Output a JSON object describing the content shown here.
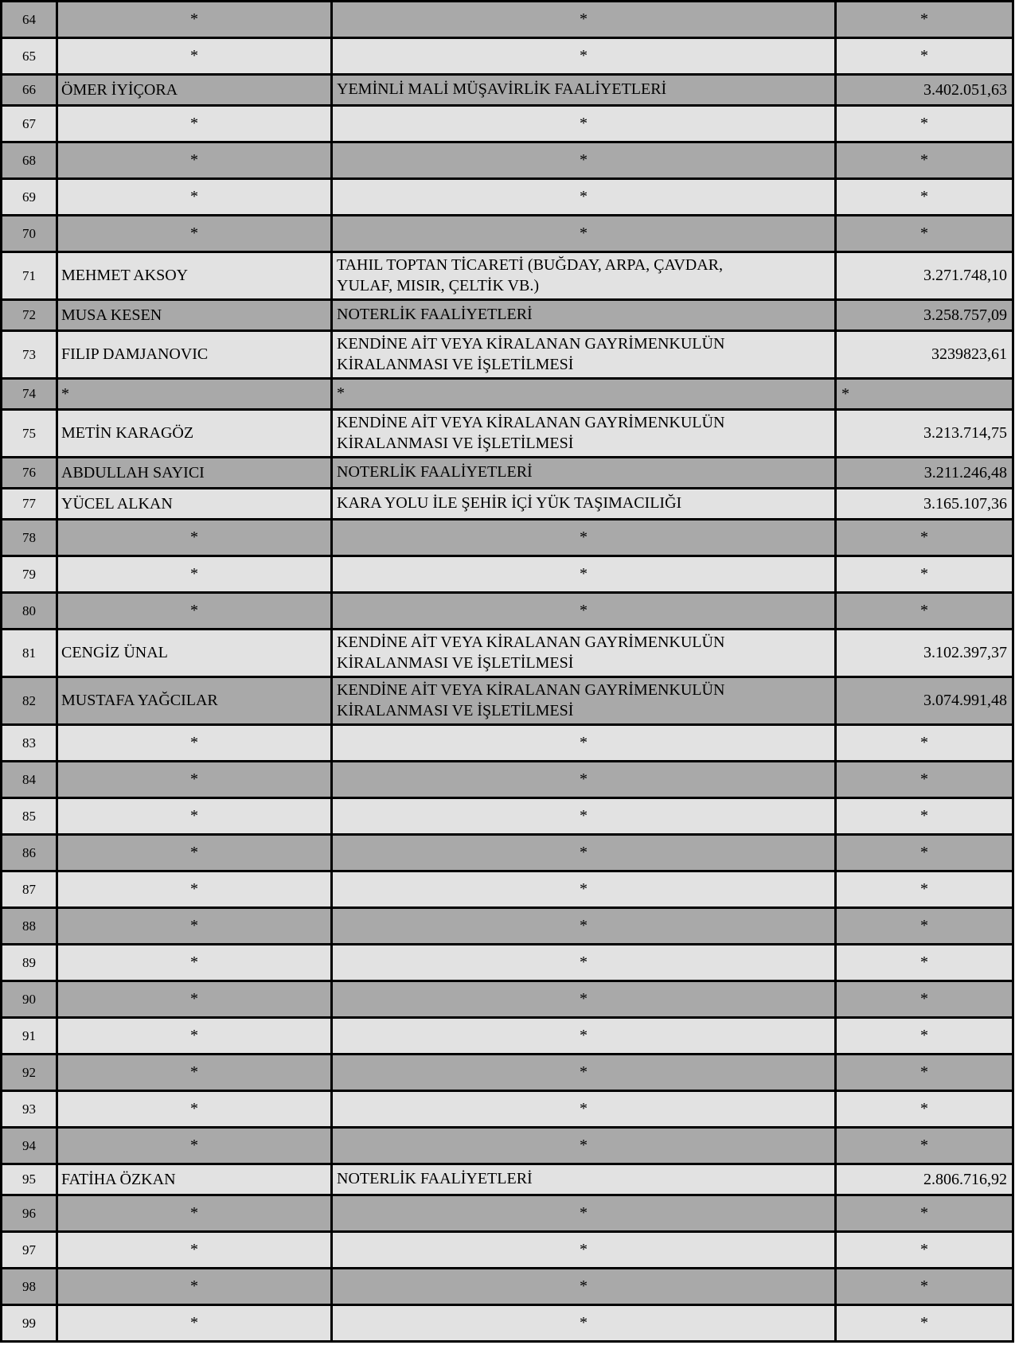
{
  "document": {
    "kind": "masked-taxpayer-list-table",
    "masked_symbol": "*",
    "language": "tr"
  },
  "colors": {
    "row_dark": "#a9a9a9",
    "row_light": "#e2e2e2",
    "border": "#000000",
    "text": "#000000",
    "page_background": "#ffffff"
  },
  "table": {
    "columns": [
      "row_number",
      "name",
      "activity",
      "amount"
    ],
    "rows": [
      {
        "num": "64",
        "name": "*",
        "activity": "*",
        "amount": "*",
        "masked": true
      },
      {
        "num": "65",
        "name": "*",
        "activity": "*",
        "amount": "*",
        "masked": true
      },
      {
        "num": "66",
        "name": "ÖMER İYİÇORA",
        "activity": "YEMİNLİ MALİ MÜŞAVİRLİK FAALİYETLERİ",
        "amount": "3.402.051,63",
        "masked": false
      },
      {
        "num": "67",
        "name": "*",
        "activity": "*",
        "amount": "*",
        "masked": true
      },
      {
        "num": "68",
        "name": "*",
        "activity": "*",
        "amount": "*",
        "masked": true
      },
      {
        "num": "69",
        "name": "*",
        "activity": "*",
        "amount": "*",
        "masked": true
      },
      {
        "num": "70",
        "name": "*",
        "activity": "*",
        "amount": "*",
        "masked": true
      },
      {
        "num": "71",
        "name": "MEHMET AKSOY",
        "activity": "TAHIL TOPTAN TİCARETİ (BUĞDAY, ARPA, ÇAVDAR,\nYULAF, MISIR, ÇELTİK VB.)",
        "amount": "3.271.748,10",
        "masked": false
      },
      {
        "num": "72",
        "name": "MUSA KESEN",
        "activity": "NOTERLİK FAALİYETLERİ",
        "amount": "3.258.757,09",
        "masked": false
      },
      {
        "num": "73",
        "name": "FILIP DAMJANOVIC",
        "activity": "KENDİNE AİT VEYA KİRALANAN GAYRİMENKULÜN\nKİRALANMASI VE İŞLETİLMESİ",
        "amount": "3239823,61",
        "masked": false
      },
      {
        "num": "74",
        "name": "*",
        "activity": "*",
        "amount": "*",
        "masked": true,
        "left_aligned": true
      },
      {
        "num": "75",
        "name": "METİN KARAGÖZ",
        "activity": "KENDİNE AİT VEYA KİRALANAN GAYRİMENKULÜN\nKİRALANMASI VE İŞLETİLMESİ",
        "amount": "3.213.714,75",
        "masked": false
      },
      {
        "num": "76",
        "name": "ABDULLAH SAYICI",
        "activity": "NOTERLİK FAALİYETLERİ",
        "amount": "3.211.246,48",
        "masked": false
      },
      {
        "num": "77",
        "name": "YÜCEL ALKAN",
        "activity": "KARA YOLU İLE ŞEHİR İÇİ YÜK TAŞIMACILIĞI",
        "amount": "3.165.107,36",
        "masked": false
      },
      {
        "num": "78",
        "name": "*",
        "activity": "*",
        "amount": "*",
        "masked": true
      },
      {
        "num": "79",
        "name": "*",
        "activity": "*",
        "amount": "*",
        "masked": true
      },
      {
        "num": "80",
        "name": "*",
        "activity": "*",
        "amount": "*",
        "masked": true
      },
      {
        "num": "81",
        "name": "CENGİZ ÜNAL",
        "activity": "KENDİNE AİT VEYA KİRALANAN GAYRİMENKULÜN\nKİRALANMASI VE İŞLETİLMESİ",
        "amount": "3.102.397,37",
        "masked": false
      },
      {
        "num": "82",
        "name": "MUSTAFA YAĞCILAR",
        "activity": "KENDİNE AİT VEYA KİRALANAN GAYRİMENKULÜN\nKİRALANMASI VE İŞLETİLMESİ",
        "amount": "3.074.991,48",
        "masked": false
      },
      {
        "num": "83",
        "name": "*",
        "activity": "*",
        "amount": "*",
        "masked": true
      },
      {
        "num": "84",
        "name": "*",
        "activity": "*",
        "amount": "*",
        "masked": true
      },
      {
        "num": "85",
        "name": "*",
        "activity": "*",
        "amount": "*",
        "masked": true
      },
      {
        "num": "86",
        "name": "*",
        "activity": "*",
        "amount": "*",
        "masked": true
      },
      {
        "num": "87",
        "name": "*",
        "activity": "*",
        "amount": "*",
        "masked": true
      },
      {
        "num": "88",
        "name": "*",
        "activity": "*",
        "amount": "*",
        "masked": true
      },
      {
        "num": "89",
        "name": "*",
        "activity": "*",
        "amount": "*",
        "masked": true
      },
      {
        "num": "90",
        "name": "*",
        "activity": "*",
        "amount": "*",
        "masked": true
      },
      {
        "num": "91",
        "name": "*",
        "activity": "*",
        "amount": "*",
        "masked": true
      },
      {
        "num": "92",
        "name": "*",
        "activity": "*",
        "amount": "*",
        "masked": true
      },
      {
        "num": "93",
        "name": "*",
        "activity": "*",
        "amount": "*",
        "masked": true
      },
      {
        "num": "94",
        "name": "*",
        "activity": "*",
        "amount": "*",
        "masked": true
      },
      {
        "num": "95",
        "name": "FATİHA ÖZKAN",
        "activity": "NOTERLİK FAALİYETLERİ",
        "amount": "2.806.716,92",
        "masked": false
      },
      {
        "num": "96",
        "name": "*",
        "activity": "*",
        "amount": "*",
        "masked": true
      },
      {
        "num": "97",
        "name": "*",
        "activity": "*",
        "amount": "*",
        "masked": true
      },
      {
        "num": "98",
        "name": "*",
        "activity": "*",
        "amount": "*",
        "masked": true
      },
      {
        "num": "99",
        "name": "*",
        "activity": "*",
        "amount": "*",
        "masked": true
      }
    ]
  }
}
